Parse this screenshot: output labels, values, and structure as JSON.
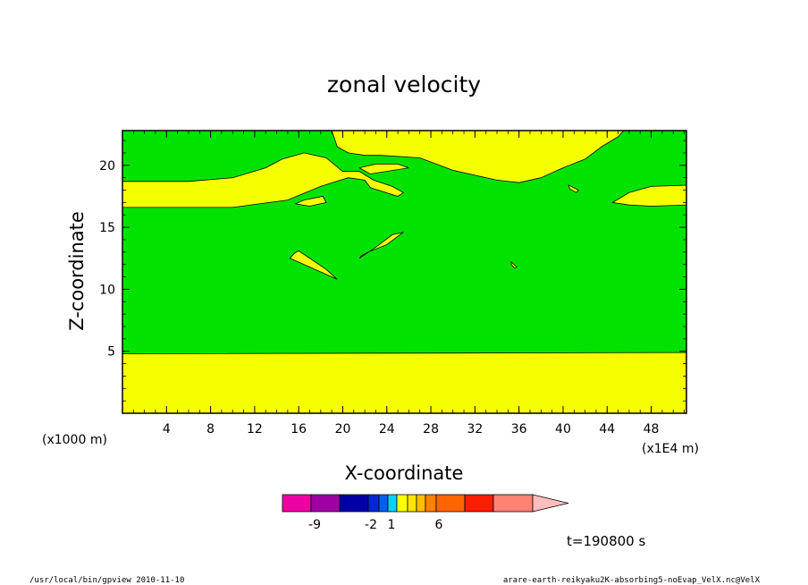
{
  "chart_data": {
    "type": "contour",
    "title": "zonal velocity",
    "xlabel": "X-coordinate",
    "ylabel": "Z-coordinate",
    "x_unit_label": "(x1E4 m)",
    "y_unit_label": "(x1000 m)",
    "xlim": [
      0,
      51.2
    ],
    "ylim": [
      0,
      22.8
    ],
    "x_ticks": [
      "4",
      "8",
      "12",
      "16",
      "20",
      "24",
      "28",
      "32",
      "36",
      "40",
      "44",
      "48"
    ],
    "y_ticks": [
      "5",
      "10",
      "15",
      "20"
    ],
    "fill_colors": {
      "positive_0_1": "#f5ff00",
      "negative_0_1": "#00e300"
    },
    "regions": [
      {
        "level": "yellow",
        "polygon": [
          [
            0,
            0
          ],
          [
            51.2,
            0
          ],
          [
            51.2,
            4.9
          ],
          [
            0,
            4.8
          ]
        ]
      },
      {
        "level": "yellow",
        "polygon": [
          [
            0,
            16.6
          ],
          [
            10,
            16.6
          ],
          [
            15,
            17.2
          ],
          [
            18,
            18.3
          ],
          [
            20.5,
            19
          ],
          [
            22,
            18.8
          ],
          [
            22.5,
            18.2
          ],
          [
            25,
            17.5
          ],
          [
            25.5,
            17.8
          ],
          [
            24.5,
            18.3
          ],
          [
            22.8,
            18.8
          ],
          [
            21.5,
            19.5
          ],
          [
            20,
            19.5
          ],
          [
            18.5,
            20.6
          ],
          [
            16.5,
            21
          ],
          [
            14.5,
            20.5
          ],
          [
            13,
            19.8
          ],
          [
            10,
            19
          ],
          [
            6,
            18.7
          ],
          [
            0,
            18.7
          ]
        ]
      },
      {
        "level": "yellow",
        "polygon": [
          [
            19,
            22.8
          ],
          [
            19.5,
            21.5
          ],
          [
            20.5,
            21
          ],
          [
            22,
            20.8
          ],
          [
            23.5,
            20.8
          ],
          [
            27,
            20.6
          ],
          [
            30,
            19.6
          ],
          [
            34,
            18.8
          ],
          [
            36,
            18.6
          ],
          [
            38,
            19
          ],
          [
            40,
            19.8
          ],
          [
            42,
            20.5
          ],
          [
            43.5,
            21.5
          ],
          [
            45,
            22.3
          ],
          [
            45.5,
            22.8
          ]
        ]
      },
      {
        "level": "yellow",
        "polygon": [
          [
            21.5,
            19.8
          ],
          [
            23,
            20.1
          ],
          [
            25,
            20.1
          ],
          [
            26,
            19.8
          ],
          [
            22.5,
            19.3
          ]
        ]
      },
      {
        "level": "yellow",
        "polygon": [
          [
            44.5,
            17
          ],
          [
            46,
            17.8
          ],
          [
            48,
            18.3
          ],
          [
            51.2,
            18.4
          ],
          [
            51.2,
            16.8
          ],
          [
            48,
            16.7
          ],
          [
            46,
            16.8
          ]
        ]
      },
      {
        "level": "yellow",
        "polygon": [
          [
            15.7,
            16.9
          ],
          [
            16.5,
            17.2
          ],
          [
            18.2,
            17.5
          ],
          [
            18.5,
            17
          ],
          [
            17,
            16.7
          ]
        ]
      },
      {
        "level": "yellow",
        "polygon": [
          [
            15.2,
            12.5
          ],
          [
            17,
            11.8
          ],
          [
            19.5,
            10.8
          ],
          [
            18.5,
            11.6
          ],
          [
            16,
            13.1
          ],
          [
            15.6,
            12.9
          ]
        ]
      },
      {
        "level": "yellow",
        "polygon": [
          [
            21.5,
            12.5
          ],
          [
            23,
            13.4
          ],
          [
            24.5,
            14.4
          ],
          [
            25.5,
            14.6
          ],
          [
            24,
            13.6
          ],
          [
            22.3,
            13
          ],
          [
            21.7,
            12.7
          ]
        ]
      },
      {
        "level": "yellow",
        "polygon": [
          [
            40.5,
            18.4
          ],
          [
            41.4,
            18
          ],
          [
            41.2,
            17.8
          ],
          [
            40.6,
            18.1
          ]
        ]
      },
      {
        "level": "yellow",
        "polygon": [
          [
            35.3,
            12.2
          ],
          [
            35.8,
            11.8
          ],
          [
            35.6,
            11.7
          ],
          [
            35.3,
            12
          ]
        ]
      }
    ],
    "colorbar": {
      "colors": [
        "#ec00a4",
        "#9f00a4",
        "#0000a4",
        "#0028d6",
        "#0061e8",
        "#00d3ff",
        "#ffff00",
        "#ffe300",
        "#ffbf00",
        "#ff8100",
        "#ff6400",
        "#ff1d00",
        "#ff8273",
        "#ffbebe"
      ],
      "labels": [
        "-9",
        "-2",
        "1",
        "6"
      ]
    },
    "time_label": "t=190800 s",
    "footer_left": "/usr/local/bin/gpview  2010-11-10",
    "footer_right": "arare-earth-reikyaku2K-absorbing5-noEvap_VelX.nc@VelX"
  }
}
